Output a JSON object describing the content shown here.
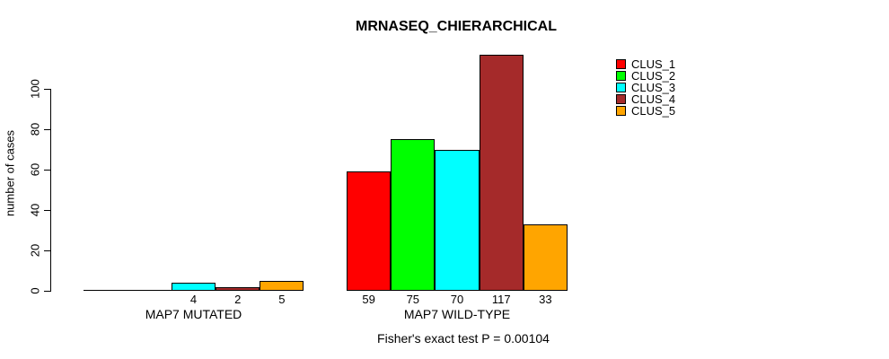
{
  "chart_data": {
    "type": "bar",
    "title": "MRNASEQ_CHIERARCHICAL",
    "ylabel": "number of cases",
    "xlabel": "",
    "footer_annotation": "Fisher's exact test P = 0.00104",
    "categories": [
      "MAP7 MUTATED",
      "MAP7 WILD-TYPE"
    ],
    "series": [
      {
        "name": "CLUS_1",
        "color": "#FF0000",
        "values": [
          0,
          59
        ]
      },
      {
        "name": "CLUS_2",
        "color": "#00FF00",
        "values": [
          0,
          75
        ]
      },
      {
        "name": "CLUS_3",
        "color": "#00FFFF",
        "values": [
          4,
          70
        ]
      },
      {
        "name": "CLUS_4",
        "color": "#A52A2A",
        "values": [
          2,
          117
        ]
      },
      {
        "name": "CLUS_5",
        "color": "#FFA500",
        "values": [
          5,
          33
        ]
      }
    ],
    "yticks": [
      0,
      20,
      40,
      60,
      80,
      100
    ],
    "ylim": [
      0,
      120
    ],
    "grid": false,
    "legend_position": "top-right",
    "legend_entries": [
      "CLUS_1",
      "CLUS_2",
      "CLUS_3",
      "CLUS_4",
      "CLUS_5"
    ],
    "value_labels_note": "zero-value bars drawn as flat line with no numeric label"
  }
}
